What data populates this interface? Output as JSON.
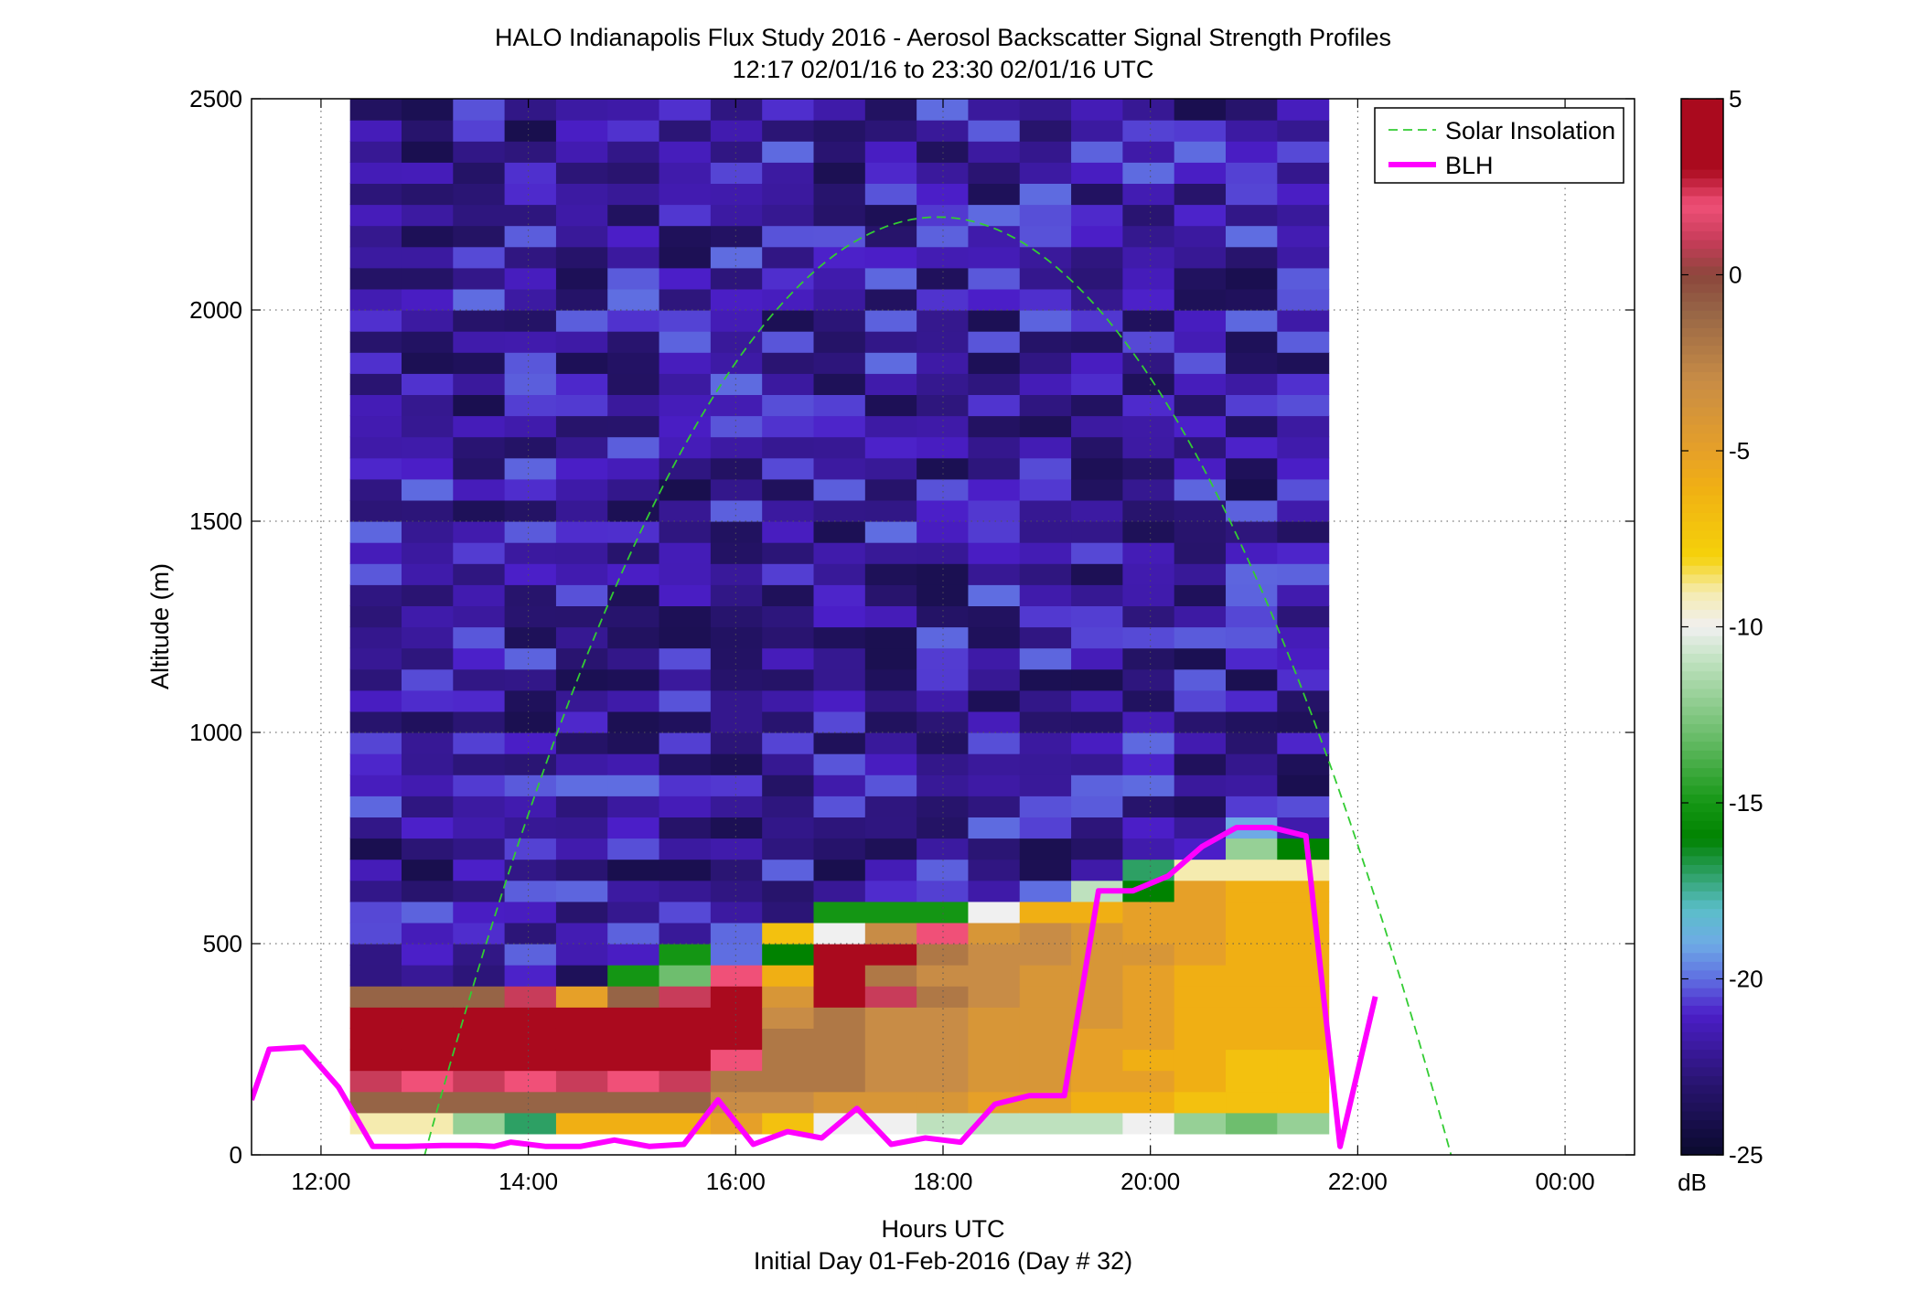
{
  "chart_data": {
    "type": "heatmap",
    "title": "HALO Indianapolis Flux Study 2016 - Aerosol Backscatter Signal Strength Profiles",
    "subtitle": "12:17 02/01/16 to 23:30 02/01/16  UTC",
    "xlabel": "Hours UTC",
    "xlabel2": "Initial Day 01-Feb-2016 (Day # 32)",
    "ylabel": "Altitude (m)",
    "xlim": [
      11.33,
      24.67
    ],
    "ylim": [
      0,
      2500
    ],
    "x_ticks": [
      {
        "value": 12,
        "label": "12:00"
      },
      {
        "value": 14,
        "label": "14:00"
      },
      {
        "value": 16,
        "label": "16:00"
      },
      {
        "value": 18,
        "label": "18:00"
      },
      {
        "value": 20,
        "label": "20:00"
      },
      {
        "value": 22,
        "label": "22:00"
      },
      {
        "value": 24,
        "label": "00:00"
      }
    ],
    "y_ticks": [
      0,
      500,
      1000,
      1500,
      2000,
      2500
    ],
    "grid": true,
    "colorbar": {
      "label": "dB",
      "min": -25,
      "max": 5,
      "ticks": [
        5,
        0,
        -5,
        -10,
        -15,
        -20,
        -25
      ]
    },
    "legend_position": "top-right",
    "legend": [
      {
        "name": "Solar Insolation",
        "style": "dashed",
        "color": "#33cc33"
      },
      {
        "name": "BLH",
        "style": "solid",
        "color": "#ff00ff"
      }
    ],
    "heatmap": {
      "x_start": 12.28,
      "x_end": 21.72,
      "n_cols": 19,
      "y_bin_m": 50,
      "profile_top_m": 2500,
      "column_top_bin": [
        15,
        15,
        15,
        15,
        15,
        15,
        15,
        15,
        15,
        13,
        13,
        13,
        13,
        13,
        12,
        12,
        12,
        11,
        11
      ],
      "low_bins": [
        [
          -9,
          -9,
          -12,
          -17,
          -6,
          -6,
          -6,
          -5,
          -7,
          -10,
          -10,
          -11,
          -11,
          -11,
          -11,
          -10,
          -12,
          -13,
          -12
        ],
        [
          -1,
          -1,
          -1,
          -1,
          -1,
          -1,
          -1,
          -3,
          -3,
          -4,
          -4,
          -4,
          -5,
          -5,
          -6,
          -6,
          -7,
          -7,
          -7
        ],
        [
          1,
          2,
          1,
          2,
          1,
          2,
          1,
          -2,
          -2,
          -2,
          -3,
          -3,
          -4,
          -4,
          -5,
          -5,
          -6,
          -7,
          -7
        ],
        [
          3,
          3,
          3,
          3,
          3,
          3,
          3,
          2,
          -2,
          -2,
          -3,
          -3,
          -4,
          -4,
          -5,
          -6,
          -6,
          -7,
          -7
        ],
        [
          3,
          3,
          3,
          3,
          3,
          3,
          3,
          3,
          -2,
          -2,
          -3,
          -3,
          -4,
          -4,
          -5,
          -5,
          -6,
          -6,
          -6
        ],
        [
          3,
          3,
          3,
          3,
          3,
          3,
          3,
          3,
          -3,
          -2,
          -3,
          -3,
          -4,
          -4,
          -4,
          -5,
          -6,
          -6,
          -6
        ],
        [
          -1,
          -1,
          -1,
          1,
          -5,
          -1,
          1,
          3,
          -4,
          3,
          1,
          -2,
          -3,
          -4,
          -4,
          -5,
          -6,
          -6,
          -6
        ],
        [
          -22,
          -22,
          -22,
          -22,
          -22,
          -15,
          -13,
          2,
          -6,
          3,
          -2,
          -3,
          -3,
          -4,
          -4,
          -5,
          -6,
          -6,
          -6
        ],
        [
          -22,
          -22,
          -22,
          -22,
          -22,
          -22,
          -15,
          -20,
          -16,
          4,
          3,
          -2,
          -3,
          -3,
          -4,
          -4,
          -5,
          -6,
          -6
        ],
        [
          -22,
          -22,
          -22,
          -22,
          -22,
          -22,
          -22,
          -22,
          -7,
          -10,
          -3,
          2,
          -4,
          -3,
          -4,
          -5,
          -5,
          -6,
          -6
        ],
        [
          -22,
          -22,
          -22,
          -22,
          -22,
          -22,
          -22,
          -22,
          -22,
          -15,
          -15,
          -15,
          -10,
          -6,
          -6,
          -5,
          -5,
          -6,
          -6
        ],
        [
          -22,
          -22,
          -22,
          -22,
          -22,
          -22,
          -22,
          -22,
          -22,
          -22,
          -22,
          -22,
          -22,
          -20,
          -11,
          -16,
          -5,
          -6,
          -6
        ],
        [
          -22,
          -22,
          -22,
          -22,
          -22,
          -22,
          -22,
          -22,
          -22,
          -22,
          -22,
          -22,
          -22,
          -22,
          -22,
          -17,
          -9,
          -9,
          -9
        ],
        [
          -22,
          -22,
          -22,
          -22,
          -22,
          -22,
          -22,
          -22,
          -22,
          -22,
          -22,
          -22,
          -22,
          -22,
          -22,
          -22,
          -21,
          -12,
          -16
        ],
        [
          -22,
          -22,
          -22,
          -22,
          -22,
          -22,
          -22,
          -22,
          -22,
          -22,
          -22,
          -22,
          -22,
          -22,
          -22,
          -22,
          -22,
          -19,
          -22
        ]
      ],
      "upper_bins_value_range": [
        -25,
        -20
      ]
    },
    "series": [
      {
        "name": "BLH",
        "x": [
          11.33,
          11.5,
          11.83,
          12.17,
          12.5,
          12.83,
          13.17,
          13.5,
          13.67,
          13.83,
          14.17,
          14.5,
          14.83,
          15.17,
          15.5,
          15.83,
          16.17,
          16.5,
          16.83,
          17.17,
          17.5,
          17.83,
          18.17,
          18.5,
          18.83,
          19.17,
          19.5,
          19.83,
          20.17,
          20.5,
          20.83,
          21.17,
          21.5,
          21.83,
          22.17
        ],
        "y": [
          130,
          250,
          255,
          160,
          20,
          20,
          22,
          22,
          20,
          30,
          20,
          20,
          35,
          20,
          25,
          130,
          25,
          55,
          40,
          110,
          25,
          40,
          30,
          120,
          140,
          140,
          625,
          625,
          660,
          730,
          775,
          775,
          755,
          20,
          375
        ]
      },
      {
        "name": "Solar Insolation",
        "x_start": 13.0,
        "x_end": 22.9,
        "peak_x": 17.95,
        "peak_y": 2220
      }
    ]
  }
}
